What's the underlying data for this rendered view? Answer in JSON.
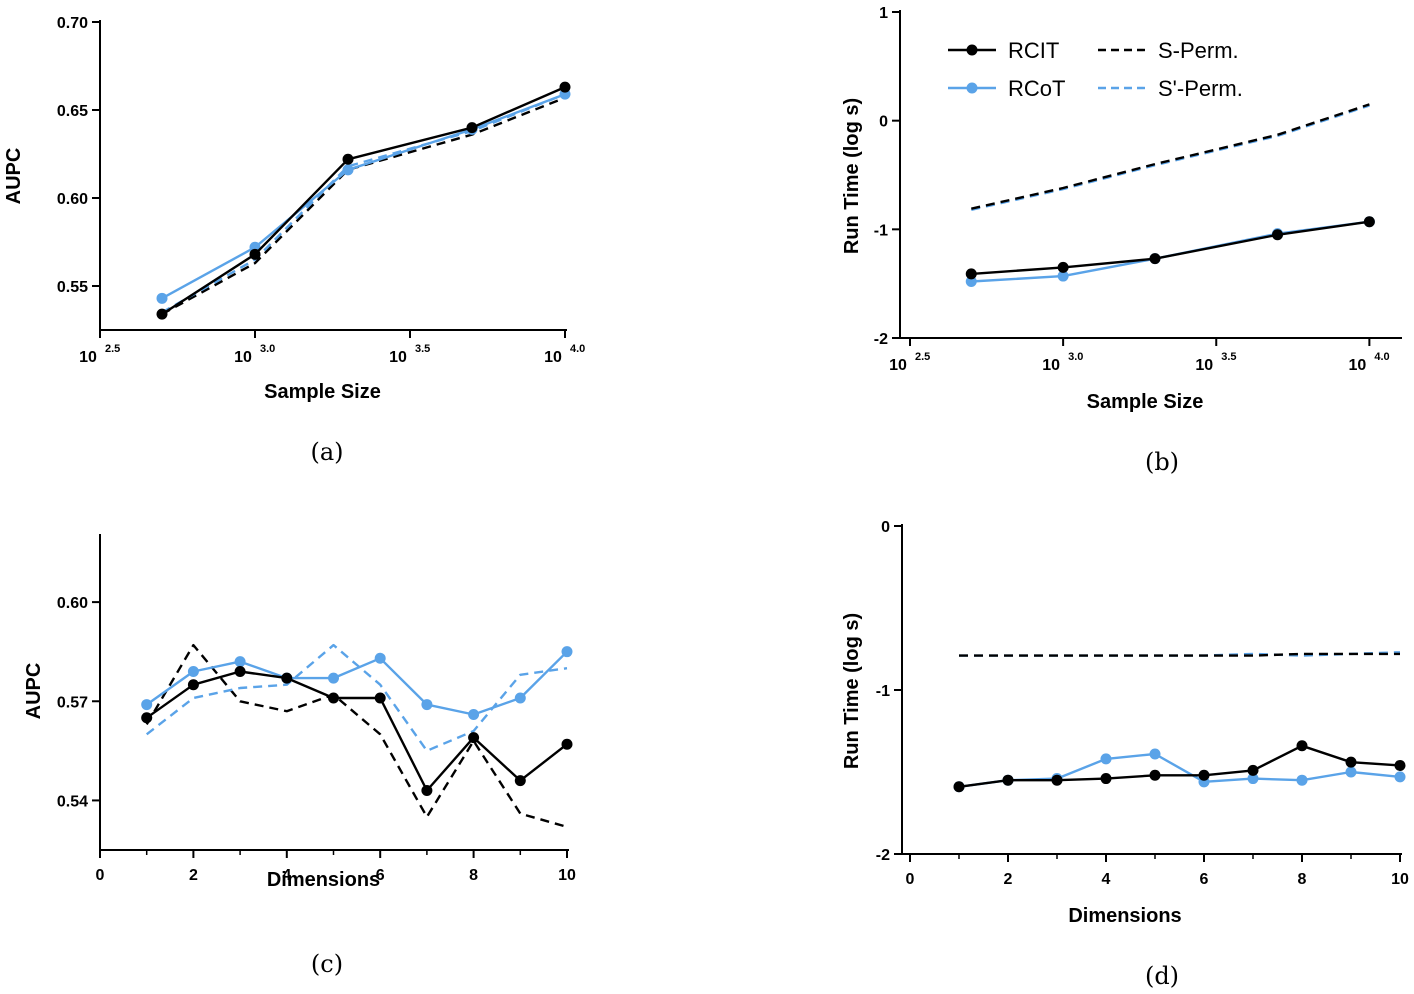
{
  "colors": {
    "rcit": "#000000",
    "rcot": "#5aa3e8"
  },
  "chart_data": [
    {
      "id": "a",
      "caption": "(a)",
      "type": "line",
      "xlabel": "Sample Size",
      "ylabel": "AUPC",
      "xscale": "log10",
      "xlim": [
        2.5,
        4.0
      ],
      "ylim": [
        0.525,
        0.7
      ],
      "yticks": [
        0.55,
        0.6,
        0.65,
        0.7
      ],
      "ytick_labels": [
        "0.55",
        "0.60",
        "0.65",
        "0.70"
      ],
      "xticks": [
        2.5,
        3.0,
        3.5,
        4.0
      ],
      "xtick_base": "10",
      "xtick_exps": [
        "2.5",
        "3.0",
        "3.5",
        "4.0"
      ],
      "series": [
        {
          "name": "S-Perm.",
          "style": "dashed",
          "color": "#000000",
          "x": [
            2.7,
            3.0,
            3.3,
            3.7,
            4.0
          ],
          "y": [
            0.534,
            0.563,
            0.616,
            0.636,
            0.657
          ]
        },
        {
          "name": "S'-Perm.",
          "style": "dashed",
          "color": "#5aa3e8",
          "x": [
            2.7,
            3.0,
            3.3,
            3.7,
            4.0
          ],
          "y": [
            0.535,
            0.565,
            0.618,
            0.638,
            0.659
          ]
        },
        {
          "name": "RCoT",
          "style": "solid",
          "marker": true,
          "color": "#5aa3e8",
          "x": [
            2.7,
            3.0,
            3.3,
            3.7,
            4.0
          ],
          "y": [
            0.543,
            0.572,
            0.616,
            0.639,
            0.659
          ]
        },
        {
          "name": "RCIT",
          "style": "solid",
          "marker": true,
          "color": "#000000",
          "x": [
            2.7,
            3.0,
            3.3,
            3.7,
            4.0
          ],
          "y": [
            0.534,
            0.568,
            0.622,
            0.64,
            0.663
          ]
        }
      ]
    },
    {
      "id": "b",
      "caption": "(b)",
      "type": "line",
      "xlabel": "Sample Size",
      "ylabel": "Run Time (log s)",
      "xscale": "log10",
      "xlim": [
        2.5,
        4.1
      ],
      "ylim": [
        -2,
        1
      ],
      "yticks": [
        -2,
        -1,
        0,
        1
      ],
      "ytick_labels": [
        "-2",
        "-1",
        "0",
        "1"
      ],
      "xticks": [
        2.5,
        3.0,
        3.5,
        4.0
      ],
      "xtick_base": "10",
      "xtick_exps": [
        "2.5",
        "3.0",
        "3.5",
        "4.0"
      ],
      "legend": {
        "position": "top-left",
        "items": [
          {
            "label": "RCIT",
            "color": "#000000",
            "style": "solid",
            "marker": true
          },
          {
            "label": "RCoT",
            "color": "#5aa3e8",
            "style": "solid",
            "marker": true
          },
          {
            "label": "S-Perm.",
            "color": "#000000",
            "style": "dashed"
          },
          {
            "label": "S'-Perm.",
            "color": "#5aa3e8",
            "style": "dashed"
          }
        ]
      },
      "series": [
        {
          "name": "S'-Perm.",
          "style": "dashed",
          "color": "#5aa3e8",
          "x": [
            2.7,
            3.0,
            3.3,
            3.7,
            4.0
          ],
          "y": [
            -0.82,
            -0.63,
            -0.41,
            -0.14,
            0.14
          ]
        },
        {
          "name": "S-Perm.",
          "style": "dashed",
          "color": "#000000",
          "x": [
            2.7,
            3.0,
            3.3,
            3.7,
            4.0
          ],
          "y": [
            -0.81,
            -0.62,
            -0.4,
            -0.13,
            0.15
          ]
        },
        {
          "name": "RCoT",
          "style": "solid",
          "marker": true,
          "color": "#5aa3e8",
          "x": [
            2.7,
            3.0,
            3.3,
            3.7,
            4.0
          ],
          "y": [
            -1.48,
            -1.43,
            -1.27,
            -1.04,
            -0.93
          ]
        },
        {
          "name": "RCIT",
          "style": "solid",
          "marker": true,
          "color": "#000000",
          "x": [
            2.7,
            3.0,
            3.3,
            3.7,
            4.0
          ],
          "y": [
            -1.41,
            -1.35,
            -1.27,
            -1.05,
            -0.93
          ]
        }
      ]
    },
    {
      "id": "c",
      "caption": "(c)",
      "type": "line",
      "xlabel": "Dimensions",
      "ylabel": "AUPC",
      "xlim": [
        0,
        10
      ],
      "ylim": [
        0.525,
        0.62
      ],
      "yticks": [
        0.54,
        0.57,
        0.6
      ],
      "ytick_labels": [
        "0.54",
        "0.57",
        "0.60"
      ],
      "xticks": [
        0,
        2,
        4,
        6,
        8,
        10
      ],
      "xtick_labels": [
        "0",
        "2",
        "4",
        "6",
        "8",
        "10"
      ],
      "series": [
        {
          "name": "S-Perm.",
          "style": "dashed",
          "color": "#000000",
          "x": [
            1,
            2,
            3,
            4,
            5,
            6,
            7,
            8,
            9,
            10
          ],
          "y": [
            0.563,
            0.587,
            0.57,
            0.567,
            0.572,
            0.56,
            0.535,
            0.558,
            0.536,
            0.532
          ]
        },
        {
          "name": "S'-Perm.",
          "style": "dashed",
          "color": "#5aa3e8",
          "x": [
            1,
            2,
            3,
            4,
            5,
            6,
            7,
            8,
            9,
            10
          ],
          "y": [
            0.56,
            0.571,
            0.574,
            0.575,
            0.587,
            0.575,
            0.555,
            0.561,
            0.578,
            0.58
          ]
        },
        {
          "name": "RCoT",
          "style": "solid",
          "marker": true,
          "color": "#5aa3e8",
          "x": [
            1,
            2,
            3,
            4,
            5,
            6,
            7,
            8,
            9,
            10
          ],
          "y": [
            0.569,
            0.579,
            0.582,
            0.577,
            0.577,
            0.583,
            0.569,
            0.566,
            0.571,
            0.585
          ]
        },
        {
          "name": "RCIT",
          "style": "solid",
          "marker": true,
          "color": "#000000",
          "x": [
            1,
            2,
            3,
            4,
            5,
            6,
            7,
            8,
            9,
            10
          ],
          "y": [
            0.565,
            0.575,
            0.579,
            0.577,
            0.571,
            0.571,
            0.543,
            0.559,
            0.546,
            0.557
          ]
        }
      ]
    },
    {
      "id": "d",
      "caption": "(d)",
      "type": "line",
      "xlabel": "Dimensions",
      "ylabel": "Run Time (log s)",
      "xlim": [
        0,
        10
      ],
      "ylim": [
        -2,
        0
      ],
      "yticks": [
        -2,
        -1,
        0
      ],
      "ytick_labels": [
        "-2",
        "-1",
        "0"
      ],
      "xticks": [
        0,
        2,
        4,
        6,
        8,
        10
      ],
      "xtick_labels": [
        "0",
        "2",
        "4",
        "6",
        "8",
        "10"
      ],
      "series": [
        {
          "name": "S'-Perm.",
          "style": "dashed",
          "color": "#5aa3e8",
          "x": [
            1,
            2,
            3,
            4,
            5,
            6,
            7,
            8,
            9,
            10
          ],
          "y": [
            -0.79,
            -0.79,
            -0.79,
            -0.79,
            -0.79,
            -0.79,
            -0.78,
            -0.79,
            -0.78,
            -0.77
          ]
        },
        {
          "name": "S-Perm.",
          "style": "dashed",
          "color": "#000000",
          "x": [
            1,
            2,
            3,
            4,
            5,
            6,
            7,
            8,
            9,
            10
          ],
          "y": [
            -0.79,
            -0.79,
            -0.79,
            -0.79,
            -0.79,
            -0.79,
            -0.79,
            -0.78,
            -0.78,
            -0.78
          ]
        },
        {
          "name": "RCoT",
          "style": "solid",
          "marker": true,
          "color": "#5aa3e8",
          "x": [
            1,
            2,
            3,
            4,
            5,
            6,
            7,
            8,
            9,
            10
          ],
          "y": [
            -1.59,
            -1.55,
            -1.54,
            -1.42,
            -1.39,
            -1.56,
            -1.54,
            -1.55,
            -1.5,
            -1.53
          ]
        },
        {
          "name": "RCIT",
          "style": "solid",
          "marker": true,
          "color": "#000000",
          "x": [
            1,
            2,
            3,
            4,
            5,
            6,
            7,
            8,
            9,
            10
          ],
          "y": [
            -1.59,
            -1.55,
            -1.55,
            -1.54,
            -1.52,
            -1.52,
            -1.49,
            -1.34,
            -1.44,
            -1.46
          ]
        }
      ]
    }
  ]
}
